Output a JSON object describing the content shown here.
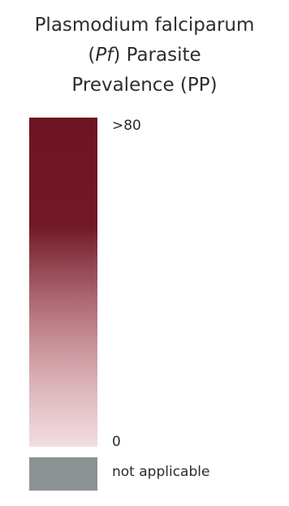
{
  "legend": {
    "title": {
      "line1": "Plasmodium falciparum",
      "line2_italic": "Pf",
      "line2_rest": " Parasite",
      "line3": "Prevalence (PP)"
    },
    "scale": {
      "max_label": ">80",
      "min_label": "0",
      "colors": {
        "high": "#6e1422",
        "mid": "#a9646e",
        "low": "#f1dfe1"
      }
    },
    "not_applicable": {
      "label": "not applicable",
      "color": "#8c9293"
    }
  }
}
